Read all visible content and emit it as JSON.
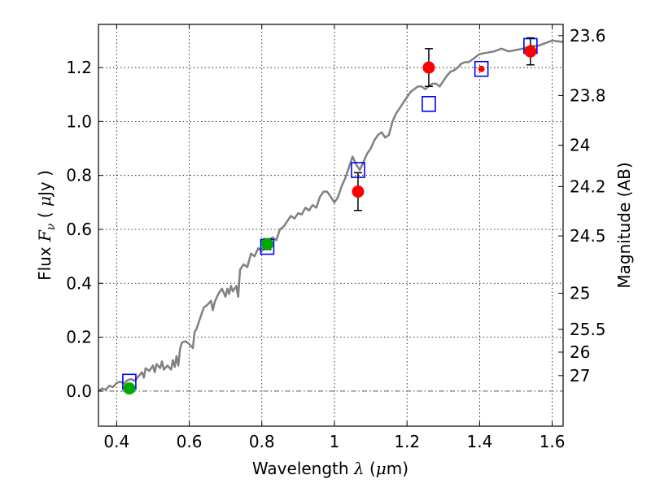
{
  "chart_data": {
    "type": "scatter",
    "title": "",
    "xlabel": {
      "prefix": "Wavelength  ",
      "symbol": "λ",
      "open": " (",
      "unit_symbol": "μ",
      "unit": "m)"
    },
    "ylabel": {
      "prefix": "Flux  ",
      "symbol": "F",
      "subscript": "ν",
      "open": "  ( ",
      "unit_symbol": "μ",
      "unit": "Jy )"
    },
    "y2label": "Magnitude (AB)",
    "xlim": [
      0.35,
      1.63
    ],
    "ylim": [
      -0.13,
      1.36
    ],
    "grid": true,
    "x_ticks": [
      {
        "value": 0.4,
        "label": "0.4"
      },
      {
        "value": 0.6,
        "label": "0.6"
      },
      {
        "value": 0.8,
        "label": "0.8"
      },
      {
        "value": 1.0,
        "label": "1"
      },
      {
        "value": 1.2,
        "label": "1.2"
      },
      {
        "value": 1.4,
        "label": "1.4"
      },
      {
        "value": 1.6,
        "label": "1.6"
      }
    ],
    "y_ticks": [
      {
        "value": 0.0,
        "label": "0.0"
      },
      {
        "value": 0.2,
        "label": "0.2"
      },
      {
        "value": 0.4,
        "label": "0.4"
      },
      {
        "value": 0.6,
        "label": "0.6"
      },
      {
        "value": 0.8,
        "label": "0.8"
      },
      {
        "value": 1.0,
        "label": "1.0"
      },
      {
        "value": 1.2,
        "label": "1.2"
      }
    ],
    "y2_ticks": [
      {
        "value": 23.6,
        "label": "23.6"
      },
      {
        "value": 23.8,
        "label": "23.8"
      },
      {
        "value": 24.0,
        "label": "24"
      },
      {
        "value": 24.2,
        "label": "24.2"
      },
      {
        "value": 24.5,
        "label": "24.5"
      },
      {
        "value": 25.0,
        "label": "25"
      },
      {
        "value": 25.5,
        "label": "25.5"
      },
      {
        "value": 26.0,
        "label": "26"
      },
      {
        "value": 27.0,
        "label": "27"
      }
    ],
    "series": [
      {
        "kind": "line",
        "color": "#808080",
        "points": [
          [
            0.35,
            0.0
          ],
          [
            0.36,
            0.01
          ],
          [
            0.37,
            0.005
          ],
          [
            0.38,
            0.02
          ],
          [
            0.39,
            0.015
          ],
          [
            0.4,
            0.03
          ],
          [
            0.41,
            0.035
          ],
          [
            0.42,
            0.028
          ],
          [
            0.43,
            0.04
          ],
          [
            0.44,
            0.045
          ],
          [
            0.45,
            0.038
          ],
          [
            0.46,
            0.055
          ],
          [
            0.47,
            0.07
          ],
          [
            0.475,
            0.05
          ],
          [
            0.48,
            0.085
          ],
          [
            0.49,
            0.075
          ],
          [
            0.5,
            0.095
          ],
          [
            0.505,
            0.07
          ],
          [
            0.51,
            0.1
          ],
          [
            0.52,
            0.085
          ],
          [
            0.525,
            0.11
          ],
          [
            0.53,
            0.08
          ],
          [
            0.54,
            0.095
          ],
          [
            0.55,
            0.08
          ],
          [
            0.555,
            0.115
          ],
          [
            0.56,
            0.09
          ],
          [
            0.565,
            0.13
          ],
          [
            0.57,
            0.095
          ],
          [
            0.575,
            0.16
          ],
          [
            0.58,
            0.18
          ],
          [
            0.59,
            0.185
          ],
          [
            0.6,
            0.175
          ],
          [
            0.61,
            0.16
          ],
          [
            0.615,
            0.22
          ],
          [
            0.62,
            0.23
          ],
          [
            0.63,
            0.27
          ],
          [
            0.64,
            0.31
          ],
          [
            0.65,
            0.32
          ],
          [
            0.66,
            0.335
          ],
          [
            0.665,
            0.3
          ],
          [
            0.67,
            0.33
          ],
          [
            0.68,
            0.36
          ],
          [
            0.69,
            0.38
          ],
          [
            0.7,
            0.35
          ],
          [
            0.705,
            0.38
          ],
          [
            0.71,
            0.36
          ],
          [
            0.715,
            0.39
          ],
          [
            0.72,
            0.37
          ],
          [
            0.73,
            0.39
          ],
          [
            0.735,
            0.35
          ],
          [
            0.74,
            0.45
          ],
          [
            0.75,
            0.47
          ],
          [
            0.76,
            0.46
          ],
          [
            0.77,
            0.51
          ],
          [
            0.78,
            0.5
          ],
          [
            0.79,
            0.53
          ],
          [
            0.8,
            0.52
          ],
          [
            0.81,
            0.54
          ],
          [
            0.82,
            0.56
          ],
          [
            0.83,
            0.57
          ],
          [
            0.84,
            0.56
          ],
          [
            0.85,
            0.6
          ],
          [
            0.86,
            0.61
          ],
          [
            0.87,
            0.63
          ],
          [
            0.88,
            0.65
          ],
          [
            0.89,
            0.64
          ],
          [
            0.9,
            0.66
          ],
          [
            0.91,
            0.655
          ],
          [
            0.92,
            0.68
          ],
          [
            0.93,
            0.67
          ],
          [
            0.94,
            0.69
          ],
          [
            0.95,
            0.68
          ],
          [
            0.96,
            0.72
          ],
          [
            0.97,
            0.74
          ],
          [
            0.98,
            0.74
          ],
          [
            0.99,
            0.72
          ],
          [
            1.0,
            0.7
          ],
          [
            1.01,
            0.72
          ],
          [
            1.02,
            0.76
          ],
          [
            1.03,
            0.79
          ],
          [
            1.04,
            0.83
          ],
          [
            1.05,
            0.87
          ],
          [
            1.06,
            0.84
          ],
          [
            1.07,
            0.82
          ],
          [
            1.08,
            0.85
          ],
          [
            1.09,
            0.88
          ],
          [
            1.1,
            0.9
          ],
          [
            1.11,
            0.93
          ],
          [
            1.12,
            0.95
          ],
          [
            1.13,
            0.96
          ],
          [
            1.14,
            0.94
          ],
          [
            1.15,
            0.95
          ],
          [
            1.16,
            1.0
          ],
          [
            1.17,
            1.03
          ],
          [
            1.18,
            1.05
          ],
          [
            1.19,
            1.07
          ],
          [
            1.2,
            1.09
          ],
          [
            1.21,
            1.11
          ],
          [
            1.22,
            1.12
          ],
          [
            1.23,
            1.13
          ],
          [
            1.24,
            1.13
          ],
          [
            1.25,
            1.12
          ],
          [
            1.26,
            1.13
          ],
          [
            1.27,
            1.14
          ],
          [
            1.28,
            1.14
          ],
          [
            1.29,
            1.13
          ],
          [
            1.3,
            1.15
          ],
          [
            1.31,
            1.17
          ],
          [
            1.32,
            1.185
          ],
          [
            1.33,
            1.19
          ],
          [
            1.34,
            1.2
          ],
          [
            1.35,
            1.215
          ],
          [
            1.36,
            1.22
          ],
          [
            1.37,
            1.22
          ],
          [
            1.38,
            1.23
          ],
          [
            1.39,
            1.24
          ],
          [
            1.4,
            1.25
          ],
          [
            1.42,
            1.255
          ],
          [
            1.44,
            1.26
          ],
          [
            1.46,
            1.27
          ],
          [
            1.48,
            1.26
          ],
          [
            1.5,
            1.265
          ],
          [
            1.52,
            1.27
          ],
          [
            1.54,
            1.28
          ],
          [
            1.56,
            1.28
          ],
          [
            1.58,
            1.29
          ],
          [
            1.6,
            1.3
          ],
          [
            1.63,
            1.295
          ]
        ]
      },
      {
        "kind": "open-square",
        "color": "#0000ff",
        "points": [
          [
            0.435,
            0.035
          ],
          [
            0.815,
            0.535
          ],
          [
            1.065,
            0.82
          ],
          [
            1.26,
            1.065
          ],
          [
            1.405,
            1.195
          ],
          [
            1.54,
            1.28
          ]
        ]
      },
      {
        "kind": "filled-circle",
        "color": "#ff0000",
        "points": [
          {
            "x": 1.065,
            "y": 0.74,
            "err": 0.07
          },
          {
            "x": 1.26,
            "y": 1.2,
            "err": 0.07
          },
          {
            "x": 1.405,
            "y": 1.195,
            "err": 0.0
          },
          {
            "x": 1.54,
            "y": 1.26,
            "err": 0.05
          }
        ]
      },
      {
        "kind": "filled-circle",
        "color": "#00aa00",
        "points": [
          {
            "x": 0.435,
            "y": 0.01,
            "err": 0.01
          },
          {
            "x": 0.815,
            "y": 0.545,
            "err": 0.02
          }
        ]
      }
    ],
    "zero_line": {
      "y": 0,
      "style": "dashed"
    }
  }
}
